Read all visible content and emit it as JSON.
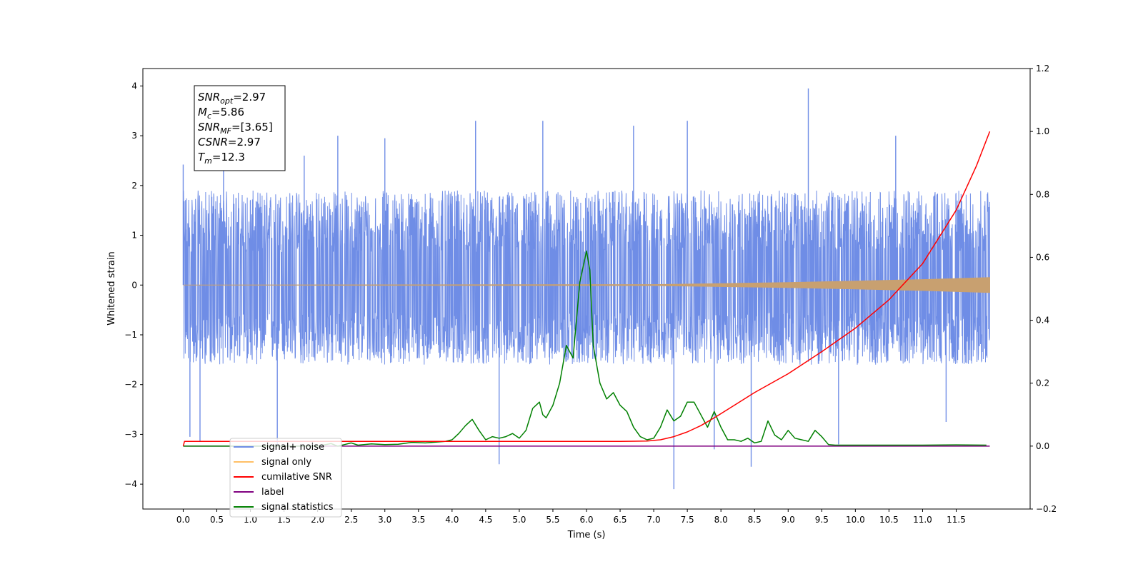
{
  "chart_data": {
    "type": "line",
    "xlabel": "Time (s)",
    "ylabel": "Whitened strain",
    "xlim": [
      -0.6,
      12.6
    ],
    "ylim": [
      -4.5,
      4.35
    ],
    "y2lim": [
      -0.2,
      1.2
    ],
    "x_ticks": [
      0.0,
      0.5,
      1.0,
      1.5,
      2.0,
      2.5,
      3.0,
      3.5,
      4.0,
      4.5,
      5.0,
      5.5,
      6.0,
      6.5,
      7.0,
      7.5,
      8.0,
      8.5,
      9.0,
      9.5,
      10.0,
      10.5,
      11.0,
      11.5
    ],
    "x_tick_labels": [
      "0.0",
      "0.5",
      "1.0",
      "1.5",
      "2.0",
      "2.5",
      "3.0",
      "3.5",
      "4.0",
      "4.5",
      "5.0",
      "5.5",
      "6.0",
      "6.5",
      "7.0",
      "7.5",
      "8.0",
      "8.5",
      "9.0",
      "9.5",
      "10.0",
      "10.5",
      "11.0",
      "11.5"
    ],
    "y_ticks": [
      -4,
      -3,
      -2,
      -1,
      0,
      1,
      2,
      3,
      4
    ],
    "y_tick_labels": [
      "−4",
      "−3",
      "−2",
      "−1",
      "0",
      "1",
      "2",
      "3",
      "4"
    ],
    "y2_ticks": [
      -0.2,
      0.0,
      0.2,
      0.4,
      0.6,
      0.8,
      1.0,
      1.2
    ],
    "y2_tick_labels": [
      "−0.2",
      "0.0",
      "0.2",
      "0.4",
      "0.6",
      "0.8",
      "1.0",
      "1.2"
    ],
    "grid": false,
    "legend_position": "bottom-left",
    "colors": {
      "signal_noise": "#6f8de6",
      "signal_only": "#ffbf66",
      "cumulative_snr": "#ff0000",
      "label": "#800080",
      "signal_statistics": "#008000",
      "signal_only_band": "#c8a070"
    },
    "series": [
      {
        "name": "signal+ noise",
        "axis": "left",
        "kind": "noise-band",
        "x_range": [
          0.0,
          12.0
        ],
        "typical_band": [
          -1.6,
          1.9
        ],
        "spikes": [
          {
            "x": 0.0,
            "y": 2.42
          },
          {
            "x": 0.1,
            "y": -3.05
          },
          {
            "x": 0.25,
            "y": -3.15
          },
          {
            "x": 0.6,
            "y": 2.9
          },
          {
            "x": 1.4,
            "y": -3.2
          },
          {
            "x": 1.8,
            "y": 2.6
          },
          {
            "x": 2.3,
            "y": 3.0
          },
          {
            "x": 3.0,
            "y": 2.95
          },
          {
            "x": 4.35,
            "y": 3.3
          },
          {
            "x": 4.7,
            "y": -3.6
          },
          {
            "x": 5.35,
            "y": 3.3
          },
          {
            "x": 6.7,
            "y": 3.2
          },
          {
            "x": 7.3,
            "y": -4.1
          },
          {
            "x": 7.5,
            "y": 3.3
          },
          {
            "x": 7.9,
            "y": -3.3
          },
          {
            "x": 8.45,
            "y": -3.65
          },
          {
            "x": 9.3,
            "y": 3.95
          },
          {
            "x": 9.75,
            "y": -3.2
          },
          {
            "x": 10.6,
            "y": 3.0
          },
          {
            "x": 11.35,
            "y": -2.75
          }
        ]
      },
      {
        "name": "signal only",
        "axis": "left",
        "kind": "chirp",
        "x_range": [
          0.0,
          12.0
        ],
        "envelope": [
          [
            0.0,
            0.0
          ],
          [
            7.0,
            0.01
          ],
          [
            8.0,
            0.03
          ],
          [
            9.0,
            0.05
          ],
          [
            10.0,
            0.08
          ],
          [
            11.0,
            0.11
          ],
          [
            12.0,
            0.15
          ]
        ]
      },
      {
        "name": "cumilative SNR",
        "axis": "right",
        "x": [
          0.0,
          0.02,
          6.5,
          6.9,
          7.1,
          7.3,
          7.5,
          7.7,
          7.9,
          8.2,
          8.5,
          9.0,
          9.5,
          10.0,
          10.5,
          11.0,
          11.5,
          11.8,
          12.0
        ],
        "y": [
          0.0,
          0.015,
          0.015,
          0.016,
          0.02,
          0.03,
          0.045,
          0.065,
          0.09,
          0.13,
          0.17,
          0.23,
          0.3,
          0.375,
          0.465,
          0.58,
          0.75,
          0.89,
          1.0
        ]
      },
      {
        "name": "label",
        "axis": "right",
        "x": [
          0.0,
          12.0
        ],
        "y": [
          0.0,
          0.0
        ]
      },
      {
        "name": "signal statistics",
        "axis": "right",
        "x": [
          0.0,
          2.0,
          2.2,
          2.3,
          2.4,
          2.5,
          2.6,
          2.8,
          3.0,
          3.2,
          3.4,
          3.6,
          3.9,
          4.0,
          4.1,
          4.2,
          4.3,
          4.4,
          4.5,
          4.6,
          4.7,
          4.8,
          4.9,
          5.0,
          5.1,
          5.2,
          5.3,
          5.35,
          5.4,
          5.5,
          5.6,
          5.7,
          5.8,
          5.9,
          6.0,
          6.05,
          6.1,
          6.2,
          6.3,
          6.4,
          6.5,
          6.6,
          6.7,
          6.8,
          6.9,
          7.0,
          7.1,
          7.2,
          7.3,
          7.4,
          7.5,
          7.6,
          7.7,
          7.8,
          7.9,
          8.0,
          8.1,
          8.2,
          8.3,
          8.4,
          8.5,
          8.6,
          8.7,
          8.8,
          8.9,
          9.0,
          9.1,
          9.2,
          9.3,
          9.4,
          9.5,
          9.6,
          9.7,
          10.0,
          10.5,
          11.0,
          11.5,
          11.95
        ],
        "y": [
          0.0,
          0.0,
          0.008,
          0.0,
          0.005,
          0.01,
          0.003,
          0.007,
          0.005,
          0.006,
          0.012,
          0.01,
          0.015,
          0.02,
          0.04,
          0.065,
          0.085,
          0.05,
          0.02,
          0.03,
          0.025,
          0.03,
          0.04,
          0.025,
          0.05,
          0.12,
          0.14,
          0.1,
          0.09,
          0.13,
          0.2,
          0.32,
          0.28,
          0.52,
          0.62,
          0.56,
          0.32,
          0.2,
          0.15,
          0.17,
          0.13,
          0.11,
          0.06,
          0.03,
          0.02,
          0.025,
          0.06,
          0.115,
          0.08,
          0.095,
          0.14,
          0.14,
          0.1,
          0.06,
          0.11,
          0.06,
          0.02,
          0.02,
          0.015,
          0.025,
          0.01,
          0.015,
          0.08,
          0.035,
          0.02,
          0.05,
          0.025,
          0.02,
          0.015,
          0.05,
          0.03,
          0.005,
          0.003,
          0.003,
          0.003,
          0.003,
          0.004,
          0.003
        ]
      }
    ],
    "annotation": {
      "lines": [
        {
          "main": "SNR",
          "sub": "opt",
          "rest": "=2.97"
        },
        {
          "main": "M",
          "sub": "c",
          "rest": "=5.86"
        },
        {
          "main": "SNR",
          "sub": "MF",
          "rest": "=[3.65]"
        },
        {
          "main": "CSNR",
          "sub": "",
          "rest": "=2.97"
        },
        {
          "main": "T",
          "sub": "m",
          "rest": "=12.3"
        }
      ]
    },
    "legend": [
      {
        "label": "signal+ noise",
        "color_key": "signal_noise"
      },
      {
        "label": "signal only",
        "color_key": "signal_only"
      },
      {
        "label": "cumilative SNR",
        "color_key": "cumulative_snr"
      },
      {
        "label": "label",
        "color_key": "label"
      },
      {
        "label": "signal statistics",
        "color_key": "signal_statistics"
      }
    ]
  }
}
